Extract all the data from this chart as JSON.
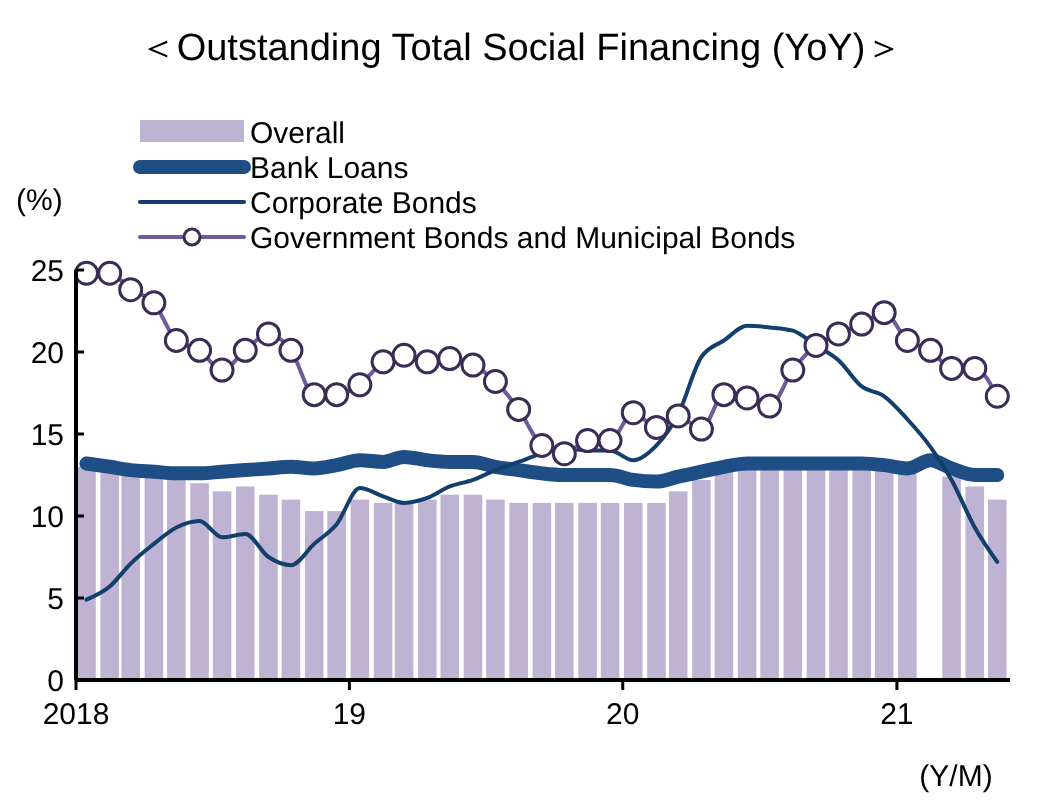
{
  "chart_data": {
    "type": "bar",
    "title": "＜Outstanding Total Social Financing (YoY)＞",
    "ylabel": "(%)",
    "xlabel": "(Y/M)",
    "x": [
      "2018-01-15",
      "2018-02-15",
      "2018-03-15",
      "2018-04-15",
      "2018-05-15",
      "2018-06-15",
      "2018-07-15",
      "2018-08-15",
      "2018-09-15",
      "2018-10-15",
      "2018-11-15",
      "2018-12-15",
      "2019-01-15",
      "2019-02-15",
      "2019-03-15",
      "2019-04-15",
      "2019-05-15",
      "2019-06-15",
      "2019-07-15",
      "2019-08-15",
      "2019-09-15",
      "2019-10-15",
      "2019-11-15",
      "2019-12-15",
      "2020-01-15",
      "2020-02-15",
      "2020-03-15",
      "2020-04-15",
      "2020-05-15",
      "2020-06-15",
      "2020-07-15",
      "2020-08-15",
      "2020-09-15",
      "2020-10-15",
      "2020-11-15",
      "2020-12-15",
      "2021-01-15",
      "2021-02-15",
      "2021-03-15",
      "2021-04-15",
      "2021-05-15"
    ],
    "series": [
      {
        "name": "Overall",
        "color": "#bfb3d3",
        "values": [
          13.0,
          12.8,
          12.6,
          12.4,
          12.2,
          12.0,
          11.5,
          11.8,
          11.3,
          11.0,
          10.3,
          10.3,
          11.0,
          10.8,
          10.8,
          11.0,
          11.3,
          11.3,
          11.0,
          10.8,
          10.8,
          10.8,
          10.8,
          10.8,
          10.8,
          10.8,
          11.5,
          12.2,
          12.7,
          13.0,
          13.0,
          13.0,
          13.0,
          13.0,
          13.0,
          13.0,
          13.0,
          null,
          12.4,
          11.8,
          11.0
        ]
      },
      {
        "name": "Bank Loans",
        "type": "line",
        "color": "#1f4e86",
        "values": [
          13.2,
          13.0,
          12.8,
          12.7,
          12.6,
          12.6,
          12.7,
          12.8,
          12.9,
          13.0,
          12.9,
          13.1,
          13.4,
          13.3,
          13.6,
          13.4,
          13.3,
          13.3,
          13.0,
          12.8,
          12.6,
          12.5,
          12.5,
          12.5,
          12.2,
          12.1,
          12.4,
          12.7,
          13.0,
          13.2,
          13.2,
          13.2,
          13.2,
          13.2,
          13.2,
          13.1,
          12.9,
          13.4,
          12.9,
          12.5,
          12.5
        ]
      },
      {
        "name": "Corporate Bonds",
        "type": "line",
        "color": "#123f6c",
        "values": [
          4.9,
          5.7,
          7.1,
          8.3,
          9.3,
          9.7,
          8.7,
          8.9,
          7.5,
          7.0,
          8.3,
          9.5,
          11.7,
          11.2,
          10.8,
          11.1,
          11.8,
          12.2,
          12.8,
          13.3,
          13.8,
          14.1,
          14.0,
          14.0,
          13.4,
          14.3,
          16.2,
          19.7,
          20.7,
          21.6,
          21.5,
          21.3,
          20.4,
          19.5,
          17.9,
          17.3,
          15.9,
          14.2,
          12.2,
          9.3,
          7.2
        ]
      },
      {
        "name": "Government Bonds and Municipal Bonds",
        "type": "line",
        "marker": "circle",
        "color": "#6f5a9a",
        "values": [
          24.8,
          24.8,
          23.8,
          23.0,
          20.7,
          20.1,
          18.9,
          20.1,
          21.1,
          20.1,
          17.4,
          17.4,
          18.0,
          19.4,
          19.8,
          19.4,
          19.6,
          19.2,
          18.2,
          16.5,
          14.3,
          13.8,
          14.6,
          14.6,
          16.3,
          15.4,
          16.1,
          15.3,
          17.4,
          17.2,
          16.7,
          18.9,
          20.4,
          21.1,
          21.7,
          22.4,
          20.7,
          20.1,
          19.0,
          19.0,
          17.3
        ]
      }
    ],
    "xlim": [
      "2018-01-01",
      "2021-06-01"
    ],
    "xticks": [
      {
        "value": "2018-01-01",
        "label": "2018"
      },
      {
        "value": "2019-01-01",
        "label": "19"
      },
      {
        "value": "2020-01-01",
        "label": "20"
      },
      {
        "value": "2021-01-01",
        "label": "21"
      }
    ],
    "ylim": [
      0,
      25
    ],
    "yticks": [
      0,
      5,
      10,
      15,
      20,
      25
    ],
    "grid": false,
    "legend": "top left"
  }
}
